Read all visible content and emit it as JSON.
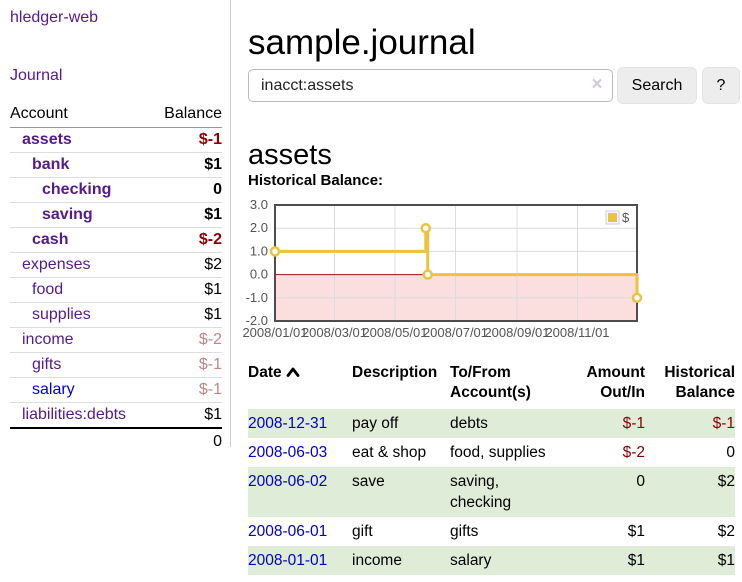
{
  "app": {
    "brand": "hledger-web"
  },
  "sidebar": {
    "journal_link": "Journal",
    "table": {
      "account_header": "Account",
      "balance_header": "Balance"
    },
    "accounts": [
      {
        "name": "assets",
        "level": 0,
        "bold": true,
        "balance": "$-1",
        "balance_style": "neg",
        "link_style": "purple"
      },
      {
        "name": "bank",
        "level": 1,
        "bold": true,
        "balance": "$1",
        "balance_style": "normal",
        "link_style": "purple"
      },
      {
        "name": "checking",
        "level": 2,
        "bold": true,
        "balance": "0",
        "balance_style": "normal",
        "link_style": "purple"
      },
      {
        "name": "saving",
        "level": 2,
        "bold": true,
        "balance": "$1",
        "balance_style": "normal",
        "link_style": "purple"
      },
      {
        "name": "cash",
        "level": 1,
        "bold": true,
        "balance": "$-2",
        "balance_style": "neg",
        "link_style": "purple"
      },
      {
        "name": "expenses",
        "level": 0,
        "bold": false,
        "balance": "$2",
        "balance_style": "normal",
        "link_style": "purple"
      },
      {
        "name": "food",
        "level": 1,
        "bold": false,
        "balance": "$1",
        "balance_style": "normal",
        "link_style": "purple"
      },
      {
        "name": "supplies",
        "level": 1,
        "bold": false,
        "balance": "$1",
        "balance_style": "normal",
        "link_style": "purple"
      },
      {
        "name": "income",
        "level": 0,
        "bold": false,
        "balance": "$-2",
        "balance_style": "muted",
        "link_style": "purple"
      },
      {
        "name": "gifts",
        "level": 1,
        "bold": false,
        "balance": "$-1",
        "balance_style": "muted",
        "link_style": "purple"
      },
      {
        "name": "salary",
        "level": 1,
        "bold": false,
        "balance": "$-1",
        "balance_style": "muted",
        "link_style": "blue"
      },
      {
        "name": "liabilities:debts",
        "level": 0,
        "bold": false,
        "balance": "$1",
        "balance_style": "normal",
        "link_style": "purple",
        "last": true
      }
    ],
    "total": "0"
  },
  "header": {
    "title": "sample.journal"
  },
  "search": {
    "value": "inacct:assets",
    "clear_icon": "×",
    "button": "Search",
    "help_button": "?"
  },
  "account_page": {
    "title": "assets",
    "chart_label": "Historical Balance:"
  },
  "chart_data": {
    "type": "line",
    "title": "Historical Balance:",
    "step": true,
    "series": [
      {
        "name": "$",
        "color": "#edc240",
        "marker_fill": "#ffffff",
        "points": [
          {
            "date": "2008-01-01",
            "day": 1,
            "value": 1
          },
          {
            "date": "2008-06-01",
            "day": 153,
            "value": 2
          },
          {
            "date": "2008-06-03",
            "day": 155,
            "value": 0
          },
          {
            "date": "2008-12-31",
            "day": 366,
            "value": -1
          }
        ]
      }
    ],
    "ylim": [
      -2,
      3
    ],
    "yticks": [
      {
        "value": 3,
        "label": "3.0"
      },
      {
        "value": 2,
        "label": "2.0"
      },
      {
        "value": 1,
        "label": "1.0"
      },
      {
        "value": 0,
        "label": "0.0"
      },
      {
        "value": -1,
        "label": "-1.0"
      },
      {
        "value": -2,
        "label": "-2.0"
      }
    ],
    "xlim_days": [
      1,
      366
    ],
    "xticks": [
      {
        "day": 1,
        "label": "2008/01/01"
      },
      {
        "day": 61,
        "label": "2008/03/01"
      },
      {
        "day": 122,
        "label": "2008/05/01"
      },
      {
        "day": 183,
        "label": "2008/07/01"
      },
      {
        "day": 245,
        "label": "2008/09/01"
      },
      {
        "day": 306,
        "label": "2008/11/01"
      }
    ],
    "legend_position": "top-right",
    "grid": true,
    "grid_color": "#dcdcdc",
    "axis_label_color": "#545454",
    "border_color": "#4d4d4d",
    "zero_line_color": "#991111",
    "negative_region_color": "#fbdede"
  },
  "transactions": {
    "columns": [
      {
        "key": "date",
        "label": "Date",
        "align": "left",
        "sorted": true
      },
      {
        "key": "description",
        "label": "Description",
        "align": "left"
      },
      {
        "key": "accounts",
        "label": "To/From Account(s)",
        "align": "left"
      },
      {
        "key": "amount",
        "label": "Amount Out/In",
        "align": "right"
      },
      {
        "key": "balance",
        "label": "Historical Balance",
        "align": "right"
      }
    ],
    "rows": [
      {
        "date": "2008-12-31",
        "description": "pay off",
        "accounts": "debts",
        "amount": "$-1",
        "amount_negative": true,
        "balance": "$-1",
        "balance_negative": true,
        "shaded": true
      },
      {
        "date": "2008-06-03",
        "description": "eat & shop",
        "accounts": "food, supplies",
        "amount": "$-2",
        "amount_negative": true,
        "balance": "0",
        "balance_negative": false,
        "shaded": false
      },
      {
        "date": "2008-06-02",
        "description": "save",
        "accounts": "saving, checking",
        "amount": "0",
        "amount_negative": false,
        "balance": "$2",
        "balance_negative": false,
        "shaded": true
      },
      {
        "date": "2008-06-01",
        "description": "gift",
        "accounts": "gifts",
        "amount": "$1",
        "amount_negative": false,
        "balance": "$2",
        "balance_negative": false,
        "shaded": false
      },
      {
        "date": "2008-01-01",
        "description": "income",
        "accounts": "salary",
        "amount": "$1",
        "amount_negative": false,
        "balance": "$1",
        "balance_negative": false,
        "shaded": true
      }
    ]
  },
  "colors": {
    "link_purple": "#551a8b",
    "link_blue": "#0000cc",
    "negative_red": "#8b0000",
    "muted_negative": "#c28585",
    "row_shade_green": "#deecd8",
    "series_gold": "#edc240"
  }
}
